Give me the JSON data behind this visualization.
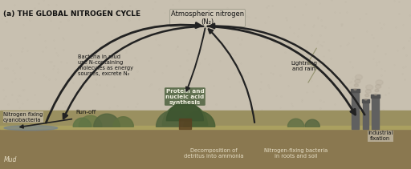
{
  "title": "(a) THE GLOBAL NITROGEN CYCLE",
  "bg_sky_color": "#c8c0b0",
  "bg_sky_top_color": "#b8b0a0",
  "bg_ground_color": "#a89870",
  "bg_soil_color": "#786848",
  "text_color": "#111111",
  "arrow_color": "#222222",
  "labels": {
    "atm_nitrogen": "Atmospheric nitrogen\n(N₂)",
    "protein": "Protein and\nnucleic acid\nsynthesis",
    "bacteria_mud": "Bacteria in mud\nuse N-containing\nmolecules as energy\nsources, excrete N₂",
    "runoff": "Run-off",
    "nitrogen_fixing_cyano": "Nitrogen fixing\ncyanobacteria",
    "mud": "Mud",
    "decomposition": "Decomposition of\ndetritus into ammonia",
    "nitrogen_fixing_roots": "Nitrogen-fixing bacteria\nin roots and soil",
    "lightning": "Lightning\nand rain",
    "industrial": "Industrial\nfixation"
  },
  "figsize": [
    5.12,
    2.11
  ],
  "dpi": 100
}
